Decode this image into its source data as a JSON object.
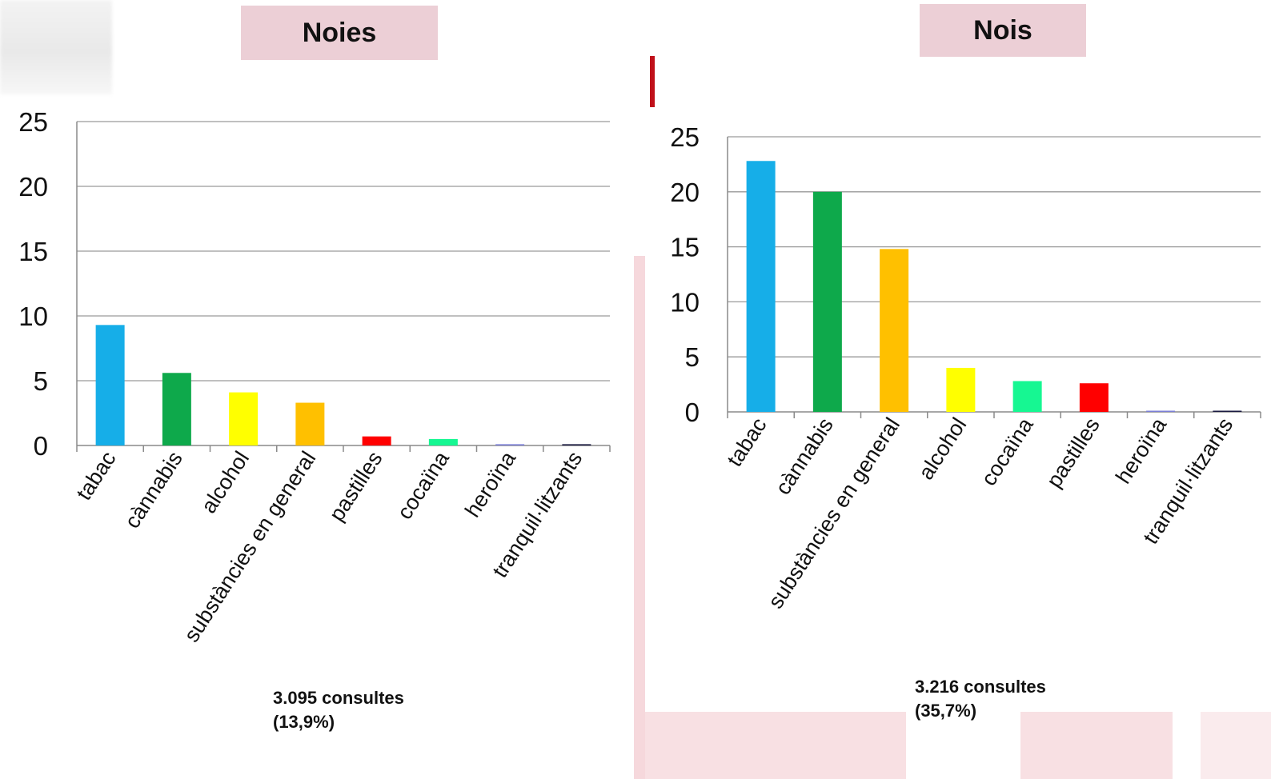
{
  "panels": [
    {
      "title": "Noies",
      "note_line1": "3.095 consultes",
      "note_line2": "(13,9%)"
    },
    {
      "title": "Nois",
      "note_line1": "3.216 consultes",
      "note_line2": "(35,7%)"
    }
  ],
  "chart_data": [
    {
      "type": "bar",
      "title": "Noies",
      "categories": [
        "tabac",
        "cànnabis",
        "alcohol",
        "substàncies en general",
        "pastilles",
        "cocaïna",
        "heroïna",
        "tranquil·litzants"
      ],
      "values": [
        9.3,
        5.6,
        4.1,
        3.3,
        0.7,
        0.5,
        0.1,
        0.1
      ],
      "colors": [
        "#16aee8",
        "#0ea94b",
        "#ffff00",
        "#ffc000",
        "#ff0000",
        "#16f792",
        "#7b7fd6",
        "#1a1a40"
      ],
      "ylim": [
        0,
        25
      ],
      "yticks": [
        0,
        5,
        10,
        15,
        20,
        25
      ],
      "grid": true,
      "legend": "none"
    },
    {
      "type": "bar",
      "title": "Nois",
      "categories": [
        "tabac",
        "cànnabis",
        "substàncies en general",
        "alcohol",
        "cocaïna",
        "pastilles",
        "heroïna",
        "tranquil·litzants"
      ],
      "values": [
        22.8,
        20.0,
        14.8,
        4.0,
        2.8,
        2.6,
        0.1,
        0.1
      ],
      "colors": [
        "#16aee8",
        "#0ea94b",
        "#ffc000",
        "#ffff00",
        "#16f792",
        "#ff0000",
        "#7b7fd6",
        "#1a1a40"
      ],
      "ylim": [
        0,
        25
      ],
      "yticks": [
        0,
        5,
        10,
        15,
        20,
        25
      ],
      "grid": true,
      "legend": "none"
    }
  ]
}
